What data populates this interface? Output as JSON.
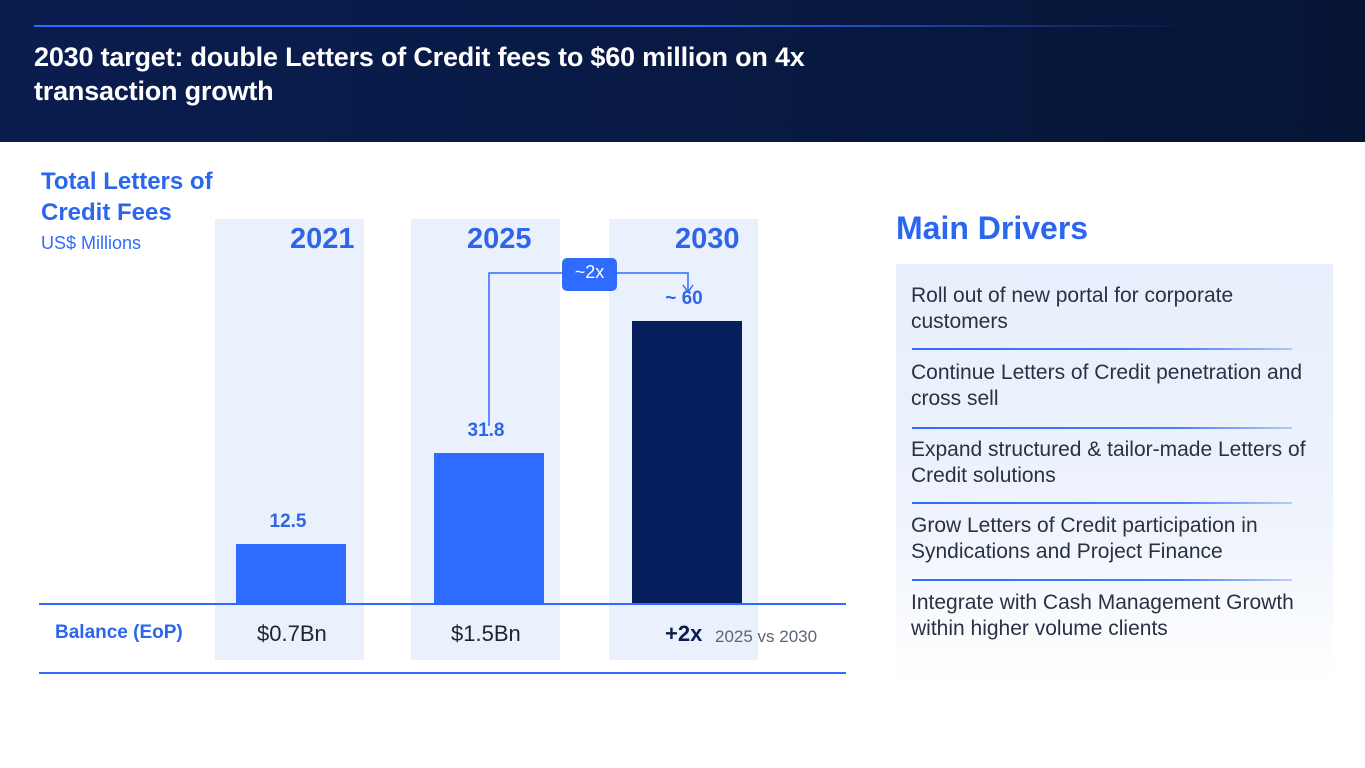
{
  "header": {
    "title": "2030 target: double Letters of Credit fees to $60 million on 4x transaction growth"
  },
  "chart_data": {
    "type": "bar",
    "title": "Total Letters of Credit Fees",
    "ylabel": "US$ Millions",
    "categories": [
      "2021",
      "2025",
      "2030"
    ],
    "values": [
      12.5,
      31.8,
      60
    ],
    "value_labels": [
      "12.5",
      "31.8",
      "~ 60"
    ],
    "ylim": [
      0,
      68
    ],
    "bar_colors": [
      "#2f6bff",
      "#2f6bff",
      "#061f5c"
    ],
    "annotation": "~2x",
    "balance": {
      "label": "Balance (EoP)",
      "values": [
        "$0.7Bn",
        "$1.5Bn"
      ],
      "growth": "+2x",
      "growth_note": "2025 vs 2030"
    }
  },
  "drivers": {
    "title": "Main Drivers",
    "items": [
      "Roll out of new portal for corporate customers",
      "Continue Letters of Credit penetration and cross sell",
      "Expand structured & tailor-made Letters of Credit solutions",
      "Grow Letters of Credit participation in Syndications and Project Finance",
      "Integrate with Cash Management Growth within higher volume clients"
    ]
  }
}
